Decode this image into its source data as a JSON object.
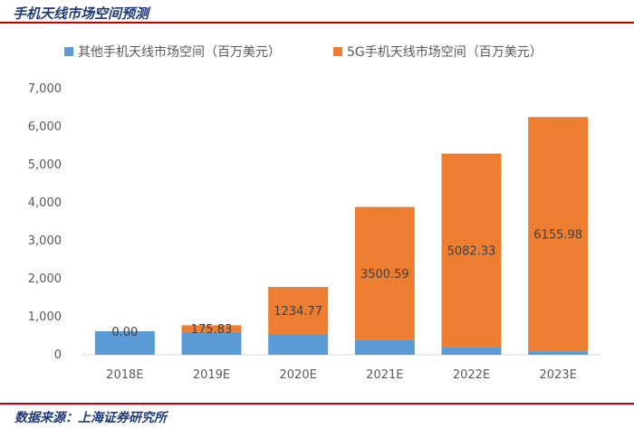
{
  "header": {
    "title": "手机天线市场空间预测"
  },
  "footer": {
    "source": "数据来源：上海证券研究所"
  },
  "colors": {
    "other": "#5b9bd5",
    "fiveg": "#ed7d31",
    "rule": "#c00000",
    "title": "#1f3a78"
  },
  "chart_data": {
    "type": "bar",
    "stacked": true,
    "categories": [
      "2018E",
      "2019E",
      "2020E",
      "2021E",
      "2022E",
      "2023E"
    ],
    "series": [
      {
        "name": "其他手机天线市场空间（百万美元）",
        "values": [
          620,
          600,
          550,
          390,
          210,
          100
        ]
      },
      {
        "name": "5G手机天线市场空间（百万美元）",
        "values": [
          0.0,
          175.83,
          1234.77,
          3500.59,
          5082.33,
          6155.98
        ]
      }
    ],
    "data_labels": [
      "0.00",
      "175.83",
      "1234.77",
      "3500.59",
      "5082.33",
      "6155.98"
    ],
    "yticks": [
      "0",
      "1,000",
      "2,000",
      "3,000",
      "4,000",
      "5,000",
      "6,000",
      "7,000"
    ],
    "ylim": [
      0,
      7000
    ],
    "legend_position": "top",
    "grid": false
  }
}
